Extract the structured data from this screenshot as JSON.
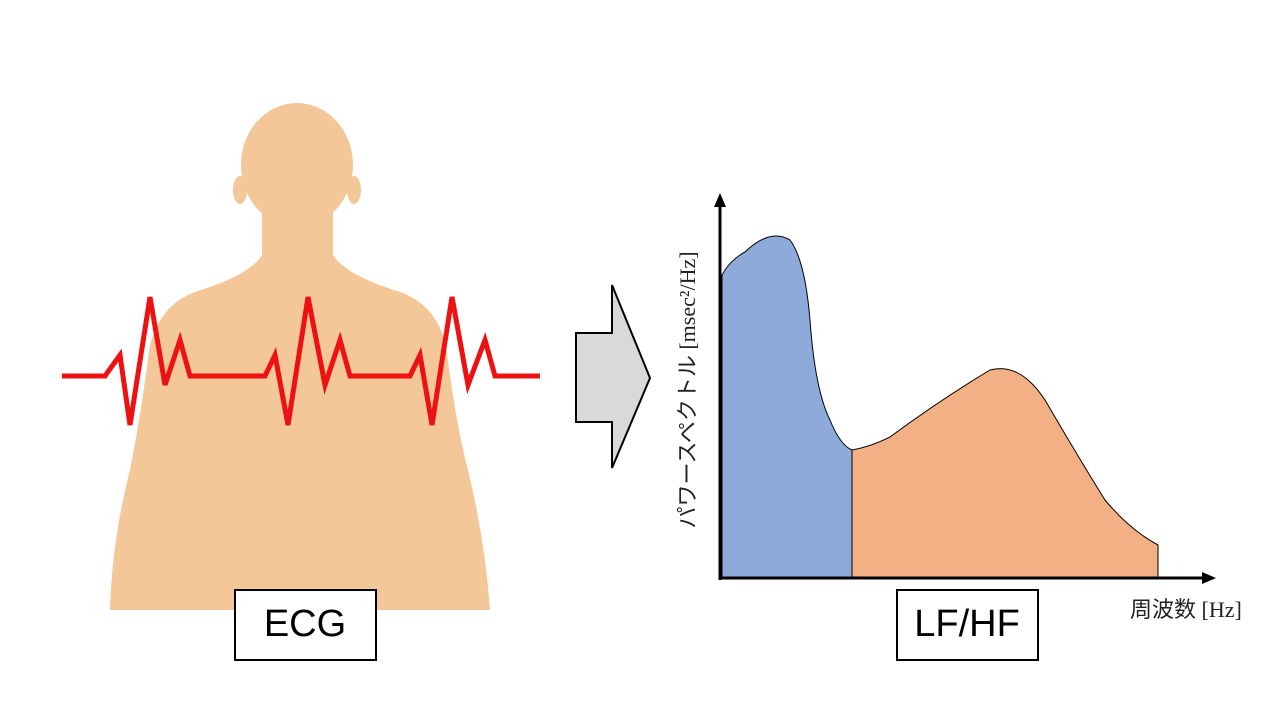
{
  "left_label": "ECG",
  "right_label": "LF/HF",
  "x_axis_label": "周波数 [Hz]",
  "y_axis_label": "パワースペクトル [msec²/Hz]"
}
